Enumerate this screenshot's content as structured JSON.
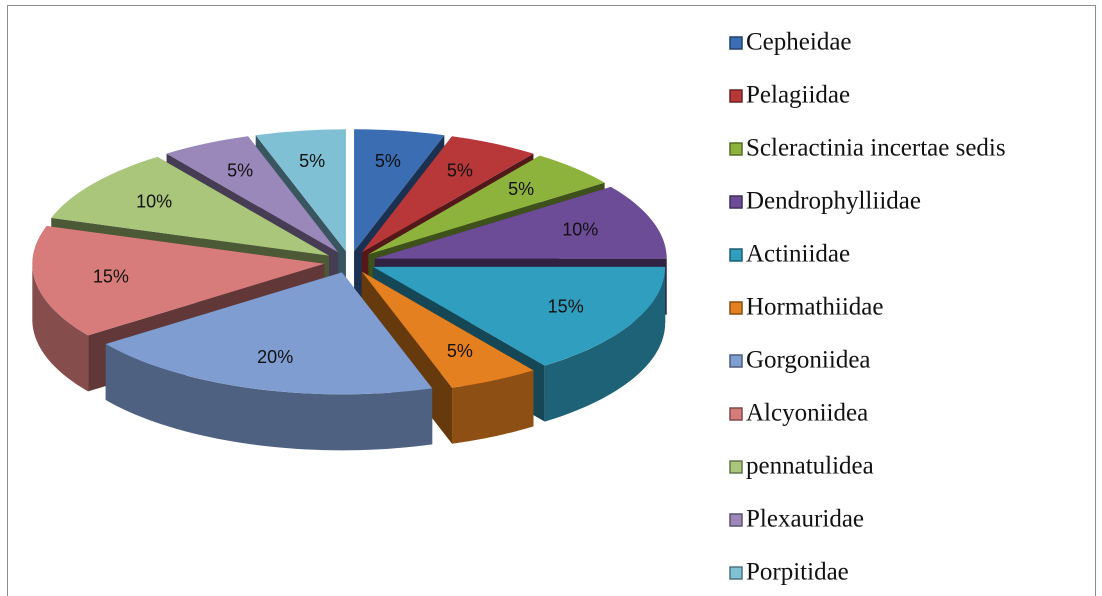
{
  "chart_data": {
    "type": "pie",
    "style": "3d-exploded",
    "categories": [
      "Cepheidae",
      "Pelagiidae",
      "Scleractinia incertae sedis",
      "Dendrophylliidae",
      "Actiniidae",
      "Hormathiidae",
      "Gorgoniidea",
      "Alcyoniidea",
      "pennatulidea",
      "Plexauridae",
      "Porpitidae"
    ],
    "values": [
      5,
      5,
      5,
      10,
      15,
      5,
      20,
      15,
      10,
      5,
      5
    ],
    "value_labels": [
      "5%",
      "5%",
      "5%",
      "10%",
      "15%",
      "5%",
      "20%",
      "15%",
      "10%",
      "5%",
      "5%"
    ],
    "colors": [
      "#3b6db3",
      "#b8383a",
      "#8db33c",
      "#6c4c96",
      "#2f9ebf",
      "#e4801f",
      "#7f9dd0",
      "#d77c7b",
      "#a9c67b",
      "#9b88bb",
      "#7fc0d5"
    ],
    "legend": "right"
  }
}
